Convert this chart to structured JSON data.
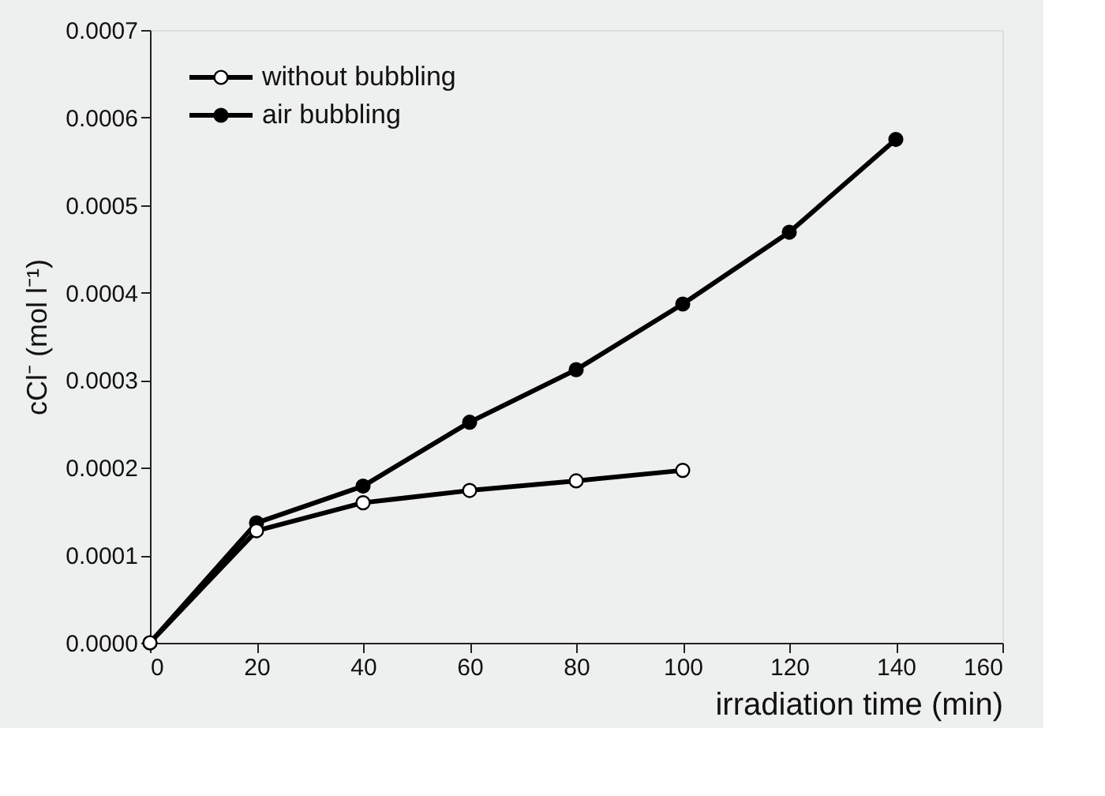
{
  "chart_data": {
    "type": "line",
    "xlabel": "irradiation time (min)",
    "ylabel": "cCl⁻ (mol l⁻¹)",
    "xlim": [
      0,
      160
    ],
    "xticks": [
      0,
      20,
      40,
      60,
      80,
      100,
      120,
      140,
      160
    ],
    "ylim": [
      0,
      0.0007
    ],
    "yticks": [
      {
        "value": 0,
        "label": "0.0000"
      },
      {
        "value": 0.0001,
        "label": "0.0001"
      },
      {
        "value": 0.0002,
        "label": "0.0002"
      },
      {
        "value": 0.0003,
        "label": "0.0003"
      },
      {
        "value": 0.0004,
        "label": "0.0004"
      },
      {
        "value": 0.0005,
        "label": "0.0005"
      },
      {
        "value": 0.0006,
        "label": "0.0006"
      },
      {
        "value": 0.0007,
        "label": "0.0007"
      }
    ],
    "grid": false,
    "legend": "top left",
    "marker": "circle",
    "line_style": "solid",
    "series": [
      {
        "name": "without bubbling",
        "color": "#000000",
        "x": [
          0,
          20,
          40,
          60,
          80,
          100
        ],
        "values": [
          0,
          0.000128,
          0.00016,
          0.000174,
          0.000185,
          0.000197
        ]
      },
      {
        "name": "air bubbling",
        "color": "#000000",
        "x": [
          0,
          20,
          40,
          60,
          80,
          100,
          120,
          140
        ],
        "values": [
          0,
          0.000137,
          0.000179,
          0.000252,
          0.000312,
          0.000387,
          0.000469,
          0.000575
        ]
      }
    ]
  }
}
